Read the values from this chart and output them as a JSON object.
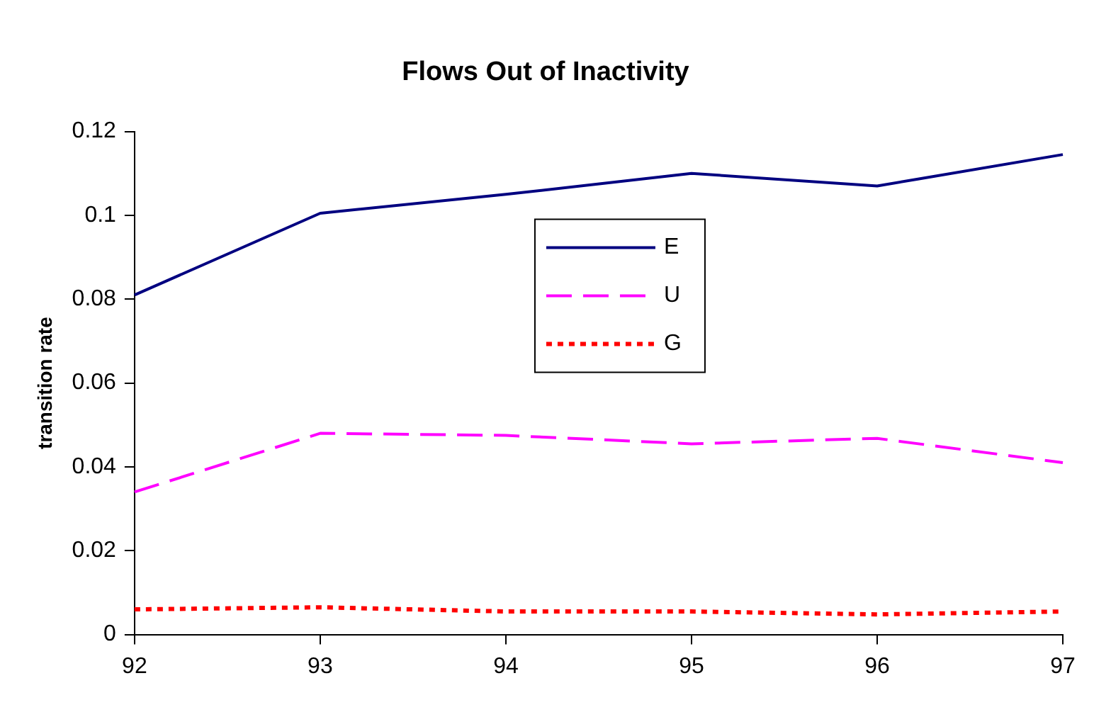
{
  "chart_data": {
    "type": "line",
    "title": "Flows Out of Inactivity",
    "ylabel": "transition rate",
    "categories": [
      "92",
      "93",
      "94",
      "95",
      "96",
      "97"
    ],
    "series": [
      {
        "name": "E",
        "color": "#000080",
        "line_style": "solid",
        "values": [
          0.081,
          0.1005,
          0.105,
          0.11,
          0.107,
          0.1145
        ]
      },
      {
        "name": "U",
        "color": "#ff00ff",
        "line_style": "dashed",
        "values": [
          0.034,
          0.048,
          0.0475,
          0.0455,
          0.0468,
          0.041
        ]
      },
      {
        "name": "G",
        "color": "#ff0000",
        "line_style": "dotted",
        "values": [
          0.006,
          0.0065,
          0.0055,
          0.0055,
          0.0048,
          0.0055
        ]
      }
    ],
    "ylim": [
      0,
      0.12
    ],
    "yticks": [
      0,
      0.02,
      0.04,
      0.06,
      0.08,
      0.1,
      0.12
    ],
    "grid": false,
    "legend": "top",
    "marker": "none"
  }
}
